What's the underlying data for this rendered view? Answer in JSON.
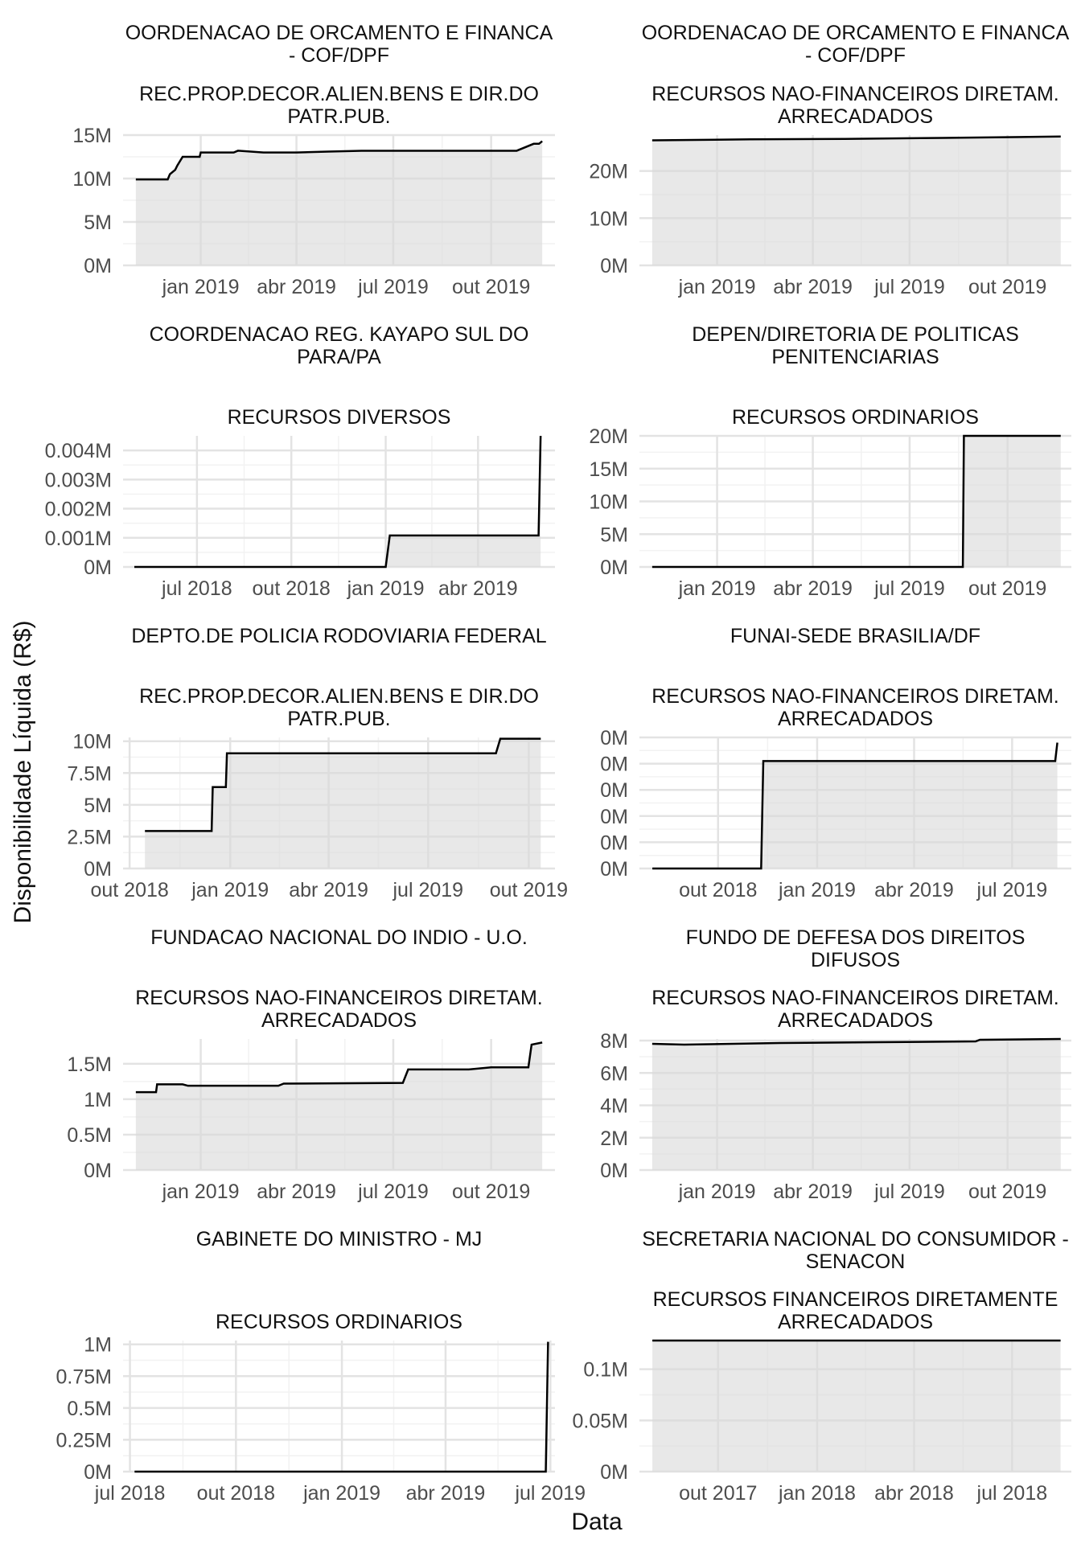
{
  "figure": {
    "xlabel": "Data",
    "ylabel": "Disponibilidade Líquida (R$)"
  },
  "chart_data": [
    {
      "type": "area",
      "title": [
        "OORDENACAO DE ORCAMENTO E FINANCA",
        "- COF/DPF"
      ],
      "subtitle": [
        "REC.PROP.DECOR.ALIEN.BENS E DIR.DO",
        "PATR.PUB."
      ],
      "xlim": [
        "2018-10-20",
        "2019-11-30"
      ],
      "xticks": [
        "2019-01-01",
        "2019-04-01",
        "2019-07-01",
        "2019-10-01"
      ],
      "xticklabels": [
        "jan 2019",
        "abr 2019",
        "jul 2019",
        "out 2019"
      ],
      "ylim": [
        0,
        15
      ],
      "yticks": [
        0,
        5,
        10,
        15
      ],
      "yticklabels": [
        "0M",
        "5M",
        "10M",
        "15M"
      ],
      "series": [
        {
          "x": [
            "2018-11-01",
            "2018-12-01",
            "2018-12-03",
            "2018-12-08",
            "2018-12-10",
            "2018-12-15",
            "2018-12-31",
            "2019-01-01",
            "2019-02-01",
            "2019-02-05",
            "2019-03-01",
            "2019-04-01",
            "2019-05-01",
            "2019-06-01",
            "2019-07-01",
            "2019-08-01",
            "2019-09-01",
            "2019-10-01",
            "2019-10-25",
            "2019-11-10",
            "2019-11-15",
            "2019-11-18"
          ],
          "y": [
            9.9,
            9.9,
            10.5,
            11.0,
            11.5,
            12.5,
            12.5,
            13.0,
            13.0,
            13.2,
            13.0,
            13.0,
            13.1,
            13.2,
            13.2,
            13.2,
            13.2,
            13.2,
            13.2,
            14.0,
            14.0,
            14.3
          ]
        }
      ]
    },
    {
      "type": "area",
      "title": [
        "OORDENACAO DE ORCAMENTO E FINANCA",
        "- COF/DPF"
      ],
      "subtitle": [
        "RECURSOS NAO-FINANCEIROS DIRETAM.",
        "ARRECADADOS"
      ],
      "xlim": [
        "2018-10-20",
        "2019-11-30"
      ],
      "xticks": [
        "2019-01-01",
        "2019-04-01",
        "2019-07-01",
        "2019-10-01"
      ],
      "xticklabels": [
        "jan 2019",
        "abr 2019",
        "jul 2019",
        "out 2019"
      ],
      "ylim": [
        0,
        27.6
      ],
      "yticks": [
        0,
        10,
        20
      ],
      "yticklabels": [
        "0M",
        "10M",
        "20M"
      ],
      "series": [
        {
          "x": [
            "2018-11-01",
            "2019-02-01",
            "2019-05-01",
            "2019-08-01",
            "2019-11-20"
          ],
          "y": [
            26.5,
            26.7,
            26.8,
            27.0,
            27.3
          ]
        }
      ]
    },
    {
      "type": "area",
      "title": [
        "COORDENACAO REG. KAYAPO SUL DO",
        "PARA/PA"
      ],
      "subtitle": [
        "RECURSOS DIVERSOS"
      ],
      "xlim": [
        "2018-04-20",
        "2019-06-15"
      ],
      "xticks": [
        "2018-07-01",
        "2018-10-01",
        "2019-01-01",
        "2019-04-01"
      ],
      "xticklabels": [
        "jul 2018",
        "out 2018",
        "jan 2019",
        "abr 2019"
      ],
      "ylim": [
        0,
        0.0045
      ],
      "yticks": [
        0,
        0.001,
        0.002,
        0.003,
        0.004
      ],
      "yticklabels": [
        "0M",
        "0.001M",
        "0.002M",
        "0.003M",
        "0.004M"
      ],
      "series": [
        {
          "x": [
            "2018-05-01",
            "2019-01-01",
            "2019-01-05",
            "2019-05-30",
            "2019-06-01"
          ],
          "y": [
            0,
            0,
            0.00108,
            0.00108,
            0.0045
          ]
        }
      ]
    },
    {
      "type": "area",
      "title": [
        "DEPEN/DIRETORIA DE POLITICAS",
        "PENITENCIARIAS"
      ],
      "subtitle": [
        "RECURSOS ORDINARIOS"
      ],
      "xlim": [
        "2018-10-20",
        "2019-11-30"
      ],
      "xticks": [
        "2019-01-01",
        "2019-04-01",
        "2019-07-01",
        "2019-10-01"
      ],
      "xticklabels": [
        "jan 2019",
        "abr 2019",
        "jul 2019",
        "out 2019"
      ],
      "ylim": [
        0,
        20
      ],
      "yticks": [
        0,
        5,
        10,
        15,
        20
      ],
      "yticklabels": [
        "0M",
        "5M",
        "10M",
        "15M",
        "20M"
      ],
      "series": [
        {
          "x": [
            "2018-11-01",
            "2019-08-20",
            "2019-08-21",
            "2019-11-20"
          ],
          "y": [
            0,
            0,
            20,
            20
          ]
        }
      ]
    },
    {
      "type": "area",
      "title": [
        "DEPTO.DE POLICIA RODOVIARIA FEDERAL"
      ],
      "subtitle": [
        "REC.PROP.DECOR.ALIEN.BENS E DIR.DO",
        "PATR.PUB."
      ],
      "xlim": [
        "2018-09-25",
        "2019-10-25"
      ],
      "xticks": [
        "2018-10-01",
        "2019-01-01",
        "2019-04-01",
        "2019-07-01",
        "2019-10-01"
      ],
      "xticklabels": [
        "out 2018",
        "jan 2019",
        "abr 2019",
        "jul 2019",
        "out 2019"
      ],
      "ylim": [
        0,
        10.3
      ],
      "yticks": [
        0,
        2.5,
        5,
        7.5,
        10
      ],
      "yticklabels": [
        "0M",
        "2.5M",
        "5M",
        "7.5M",
        "10M"
      ],
      "series": [
        {
          "x": [
            "2018-10-15",
            "2018-12-15",
            "2018-12-16",
            "2018-12-28",
            "2018-12-29",
            "2019-09-01",
            "2019-09-05",
            "2019-10-12"
          ],
          "y": [
            2.95,
            2.95,
            6.4,
            6.4,
            9.05,
            9.05,
            10.2,
            10.2
          ]
        }
      ]
    },
    {
      "type": "area",
      "title": [
        "FUNAI-SEDE BRASILIA/DF"
      ],
      "subtitle": [
        "RECURSOS NAO-FINANCEIROS DIRETAM.",
        "ARRECADADOS"
      ],
      "xlim": [
        "2018-07-20",
        "2019-08-25"
      ],
      "xticks": [
        "2018-10-01",
        "2019-01-01",
        "2019-04-01",
        "2019-07-01"
      ],
      "xticklabels": [
        "out 2018",
        "jan 2019",
        "abr 2019",
        "jul 2019"
      ],
      "ylim": [
        0,
        1
      ],
      "yticks": [
        0,
        0.2,
        0.4,
        0.6,
        0.8,
        1
      ],
      "yticklabels": [
        "0M",
        "0M",
        "0M",
        "0M",
        "0M",
        "0M"
      ],
      "series": [
        {
          "x": [
            "2018-08-01",
            "2018-11-10",
            "2018-11-12",
            "2019-08-10",
            "2019-08-12"
          ],
          "y": [
            0,
            0,
            0.82,
            0.82,
            0.96
          ]
        }
      ]
    },
    {
      "type": "area",
      "title": [
        "FUNDACAO NACIONAL DO INDIO - U.O."
      ],
      "subtitle": [
        "RECURSOS NAO-FINANCEIROS DIRETAM.",
        "ARRECADADOS"
      ],
      "xlim": [
        "2018-10-20",
        "2019-11-30"
      ],
      "xticks": [
        "2019-01-01",
        "2019-04-01",
        "2019-07-01",
        "2019-10-01"
      ],
      "xticklabels": [
        "jan 2019",
        "abr 2019",
        "jul 2019",
        "out 2019"
      ],
      "ylim": [
        0,
        1.85
      ],
      "yticks": [
        0,
        0.5,
        1,
        1.5
      ],
      "yticklabels": [
        "0M",
        "0.5M",
        "1M",
        "1.5M"
      ],
      "series": [
        {
          "x": [
            "2018-11-01",
            "2018-11-20",
            "2018-11-21",
            "2018-12-15",
            "2018-12-20",
            "2019-03-15",
            "2019-03-20",
            "2019-07-10",
            "2019-07-15",
            "2019-09-10",
            "2019-10-01",
            "2019-11-05",
            "2019-11-08",
            "2019-11-18"
          ],
          "y": [
            1.1,
            1.1,
            1.21,
            1.21,
            1.19,
            1.19,
            1.22,
            1.23,
            1.42,
            1.42,
            1.45,
            1.45,
            1.77,
            1.8
          ]
        }
      ]
    },
    {
      "type": "area",
      "title": [
        "FUNDO DE DEFESA DOS DIREITOS",
        "DIFUSOS"
      ],
      "subtitle": [
        "RECURSOS NAO-FINANCEIROS DIRETAM.",
        "ARRECADADOS"
      ],
      "xlim": [
        "2018-10-20",
        "2019-11-30"
      ],
      "xticks": [
        "2019-01-01",
        "2019-04-01",
        "2019-07-01",
        "2019-10-01"
      ],
      "xticklabels": [
        "jan 2019",
        "abr 2019",
        "jul 2019",
        "out 2019"
      ],
      "ylim": [
        0,
        8.1
      ],
      "yticks": [
        0,
        2,
        4,
        6,
        8
      ],
      "yticklabels": [
        "0M",
        "2M",
        "4M",
        "6M",
        "8M"
      ],
      "series": [
        {
          "x": [
            "2018-11-01",
            "2018-12-01",
            "2019-03-01",
            "2019-06-01",
            "2019-09-01",
            "2019-09-05",
            "2019-11-20"
          ],
          "y": [
            7.8,
            7.75,
            7.85,
            7.9,
            7.95,
            8.05,
            8.1
          ]
        }
      ]
    },
    {
      "type": "area",
      "title": [
        "GABINETE DO MINISTRO - MJ"
      ],
      "subtitle": [
        "RECURSOS ORDINARIOS"
      ],
      "xlim": [
        "2018-06-25",
        "2019-07-05"
      ],
      "xticks": [
        "2018-07-01",
        "2018-10-01",
        "2019-01-01",
        "2019-04-01",
        "2019-07-01"
      ],
      "xticklabels": [
        "jul 2018",
        "out 2018",
        "jan 2019",
        "abr 2019",
        "jul 2019"
      ],
      "ylim": [
        0,
        1.03
      ],
      "yticks": [
        0,
        0.25,
        0.5,
        0.75,
        1
      ],
      "yticklabels": [
        "0M",
        "0.25M",
        "0.5M",
        "0.75M",
        "1M"
      ],
      "series": [
        {
          "x": [
            "2018-07-05",
            "2019-06-27",
            "2019-06-29"
          ],
          "y": [
            0,
            0,
            1.02
          ]
        }
      ]
    },
    {
      "type": "area",
      "title": [
        "SECRETARIA NACIONAL DO CONSUMIDOR -",
        "SENACON"
      ],
      "subtitle": [
        "RECURSOS FINANCEIROS DIRETAMENTE",
        "ARRECADADOS"
      ],
      "xlim": [
        "2017-07-20",
        "2018-08-25"
      ],
      "xticks": [
        "2017-10-01",
        "2018-01-01",
        "2018-04-01",
        "2018-07-01"
      ],
      "xticklabels": [
        "out 2017",
        "jan 2018",
        "abr 2018",
        "jul 2018"
      ],
      "ylim": [
        0,
        0.128
      ],
      "yticks": [
        0,
        0.05,
        0.1
      ],
      "yticklabels": [
        "0M",
        "0.05M",
        "0.1M"
      ],
      "series": [
        {
          "x": [
            "2017-08-01",
            "2018-08-15"
          ],
          "y": [
            0.128,
            0.128
          ]
        }
      ]
    }
  ]
}
